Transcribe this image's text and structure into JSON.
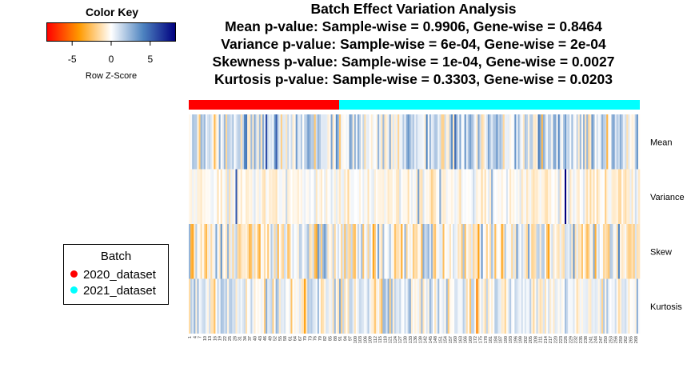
{
  "color_key": {
    "title": "Color Key",
    "label": "Row Z-Score",
    "ticks": [
      "-5",
      "0",
      "5"
    ],
    "tick_values": [
      -5,
      0,
      5
    ],
    "range": [
      -8.3,
      8.3
    ],
    "colors": [
      "#ff0000",
      "#ff9a00",
      "#ffffff",
      "#4d83c0",
      "#00007f"
    ]
  },
  "titles": [
    "Batch Effect Variation Analysis",
    "Mean p-value: Sample-wise = 0.9906, Gene-wise = 0.8464",
    "Variance p-value: Sample-wise = 6e-04, Gene-wise = 2e-04",
    "Skewness p-value: Sample-wise = 1e-04, Gene-wise = 0.0027",
    "Kurtosis p-value: Sample-wise = 0.3303, Gene-wise = 0.0203"
  ],
  "legend": {
    "title": "Batch",
    "items": [
      {
        "label": "2020_dataset",
        "color": "#ff0000"
      },
      {
        "label": "2021_dataset",
        "color": "#00ffff"
      }
    ]
  },
  "chart_data": {
    "type": "heatmap",
    "title": "Batch Effect Variation Analysis",
    "rows": [
      "Mean",
      "Variance",
      "Skew",
      "Kurtosis"
    ],
    "n_samples": 270,
    "column_tick_labels": [
      "1",
      "4",
      "7",
      "10",
      "13",
      "16",
      "19",
      "22",
      "25",
      "28",
      "31",
      "34",
      "37",
      "40",
      "43",
      "46",
      "49",
      "52",
      "55",
      "58",
      "61",
      "64",
      "67",
      "70",
      "73",
      "76",
      "79",
      "82",
      "85",
      "88",
      "91",
      "94",
      "97",
      "100",
      "103",
      "106",
      "109",
      "112",
      "115",
      "118",
      "121",
      "124",
      "127",
      "130",
      "133",
      "136",
      "139",
      "142",
      "145",
      "148",
      "151",
      "154",
      "157",
      "160",
      "163",
      "166",
      "169",
      "172",
      "175",
      "178",
      "181",
      "184",
      "187",
      "190",
      "193",
      "196",
      "199",
      "202",
      "205",
      "208",
      "211",
      "214",
      "217",
      "220",
      "223",
      "226",
      "229",
      "232",
      "235",
      "238",
      "241",
      "244",
      "247",
      "250",
      "253",
      "256",
      "259",
      "262",
      "265",
      "268"
    ],
    "batches": [
      {
        "name": "2020_dataset",
        "start": 1,
        "end": 90,
        "color": "#ff0000"
      },
      {
        "name": "2021_dataset",
        "start": 91,
        "end": 270,
        "color": "#00ffff"
      }
    ],
    "z_range": [
      -8.3,
      8.3
    ],
    "row_distributions": [
      {
        "row": "Mean",
        "mean": 0.8,
        "sd": 1.5,
        "outliers": [
          [
            196,
            3.5
          ],
          [
            255,
            3.0
          ],
          [
            145,
            2.5
          ]
        ]
      },
      {
        "row": "Variance",
        "mean": -0.2,
        "sd": 0.6,
        "outliers": [
          [
            29,
            5.5
          ],
          [
            226,
            8.3
          ],
          [
            138,
            3.2
          ],
          [
            151,
            2.8
          ],
          [
            182,
            2.6
          ]
        ]
      },
      {
        "row": "Skew",
        "mean": -0.3,
        "sd": 1.5,
        "outliers": [
          [
            54,
            -2.8
          ],
          [
            60,
            -2.5
          ],
          [
            100,
            -2.6
          ]
        ]
      },
      {
        "row": "Kurtosis",
        "mean": 0.2,
        "sd": 1.2,
        "outliers": [
          [
            4,
            2.5
          ],
          [
            117,
            2.3
          ],
          [
            140,
            2.2
          ]
        ]
      }
    ]
  }
}
